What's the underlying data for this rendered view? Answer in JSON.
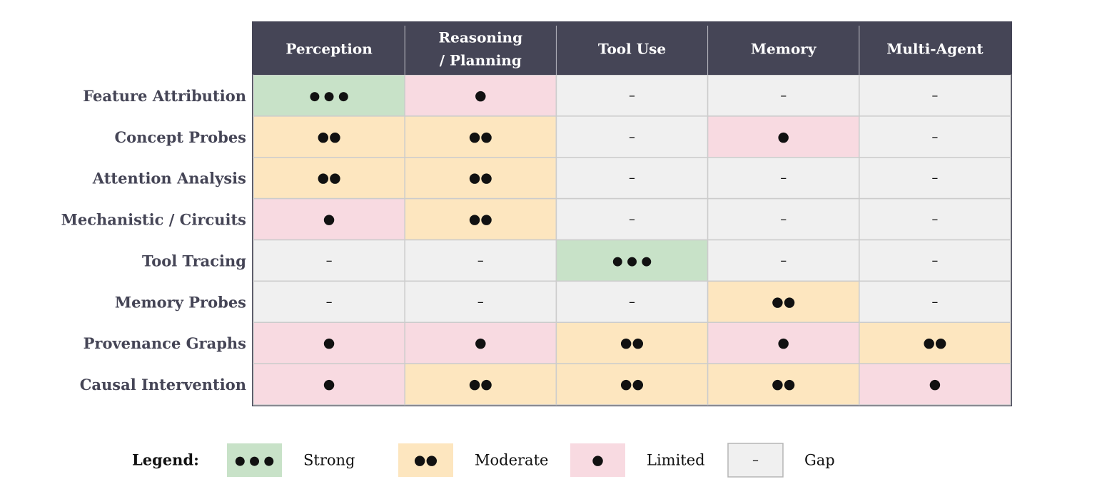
{
  "chart_data": {
    "type": "table",
    "columns": [
      "Perception",
      "Reasoning\n/ Planning",
      "Tool Use",
      "Memory",
      "Multi-Agent"
    ],
    "rows": [
      {
        "label": "Feature Attribution",
        "values": [
          "Strong",
          "Limited",
          "Gap",
          "Gap",
          "Gap"
        ]
      },
      {
        "label": "Concept Probes",
        "values": [
          "Moderate",
          "Moderate",
          "Gap",
          "Limited",
          "Gap"
        ]
      },
      {
        "label": "Attention Analysis",
        "values": [
          "Moderate",
          "Moderate",
          "Gap",
          "Gap",
          "Gap"
        ]
      },
      {
        "label": "Mechanistic / Circuits",
        "values": [
          "Limited",
          "Moderate",
          "Gap",
          "Gap",
          "Gap"
        ]
      },
      {
        "label": "Tool Tracing",
        "values": [
          "Gap",
          "Gap",
          "Strong",
          "Gap",
          "Gap"
        ]
      },
      {
        "label": "Memory Probes",
        "values": [
          "Gap",
          "Gap",
          "Gap",
          "Moderate",
          "Gap"
        ]
      },
      {
        "label": "Provenance Graphs",
        "values": [
          "Limited",
          "Limited",
          "Moderate",
          "Limited",
          "Moderate"
        ]
      },
      {
        "label": "Causal Intervention",
        "values": [
          "Limited",
          "Moderate",
          "Moderate",
          "Moderate",
          "Limited"
        ]
      }
    ],
    "levels": {
      "Strong": {
        "symbol": "● ● ●",
        "color": "#c8e2c8"
      },
      "Moderate": {
        "symbol": "●●",
        "color": "#fde6bf"
      },
      "Limited": {
        "symbol": "●",
        "color": "#f8dae1"
      },
      "Gap": {
        "symbol": "–",
        "color": "#f0f0f0"
      }
    },
    "legend": {
      "title": "Legend:",
      "placement": "bottom",
      "items": [
        "Strong",
        "Moderate",
        "Limited",
        "Gap"
      ]
    },
    "colors": {
      "header": "#454556",
      "frame": "#454556",
      "grid": "#cccccc",
      "row_label": "#454556"
    }
  }
}
